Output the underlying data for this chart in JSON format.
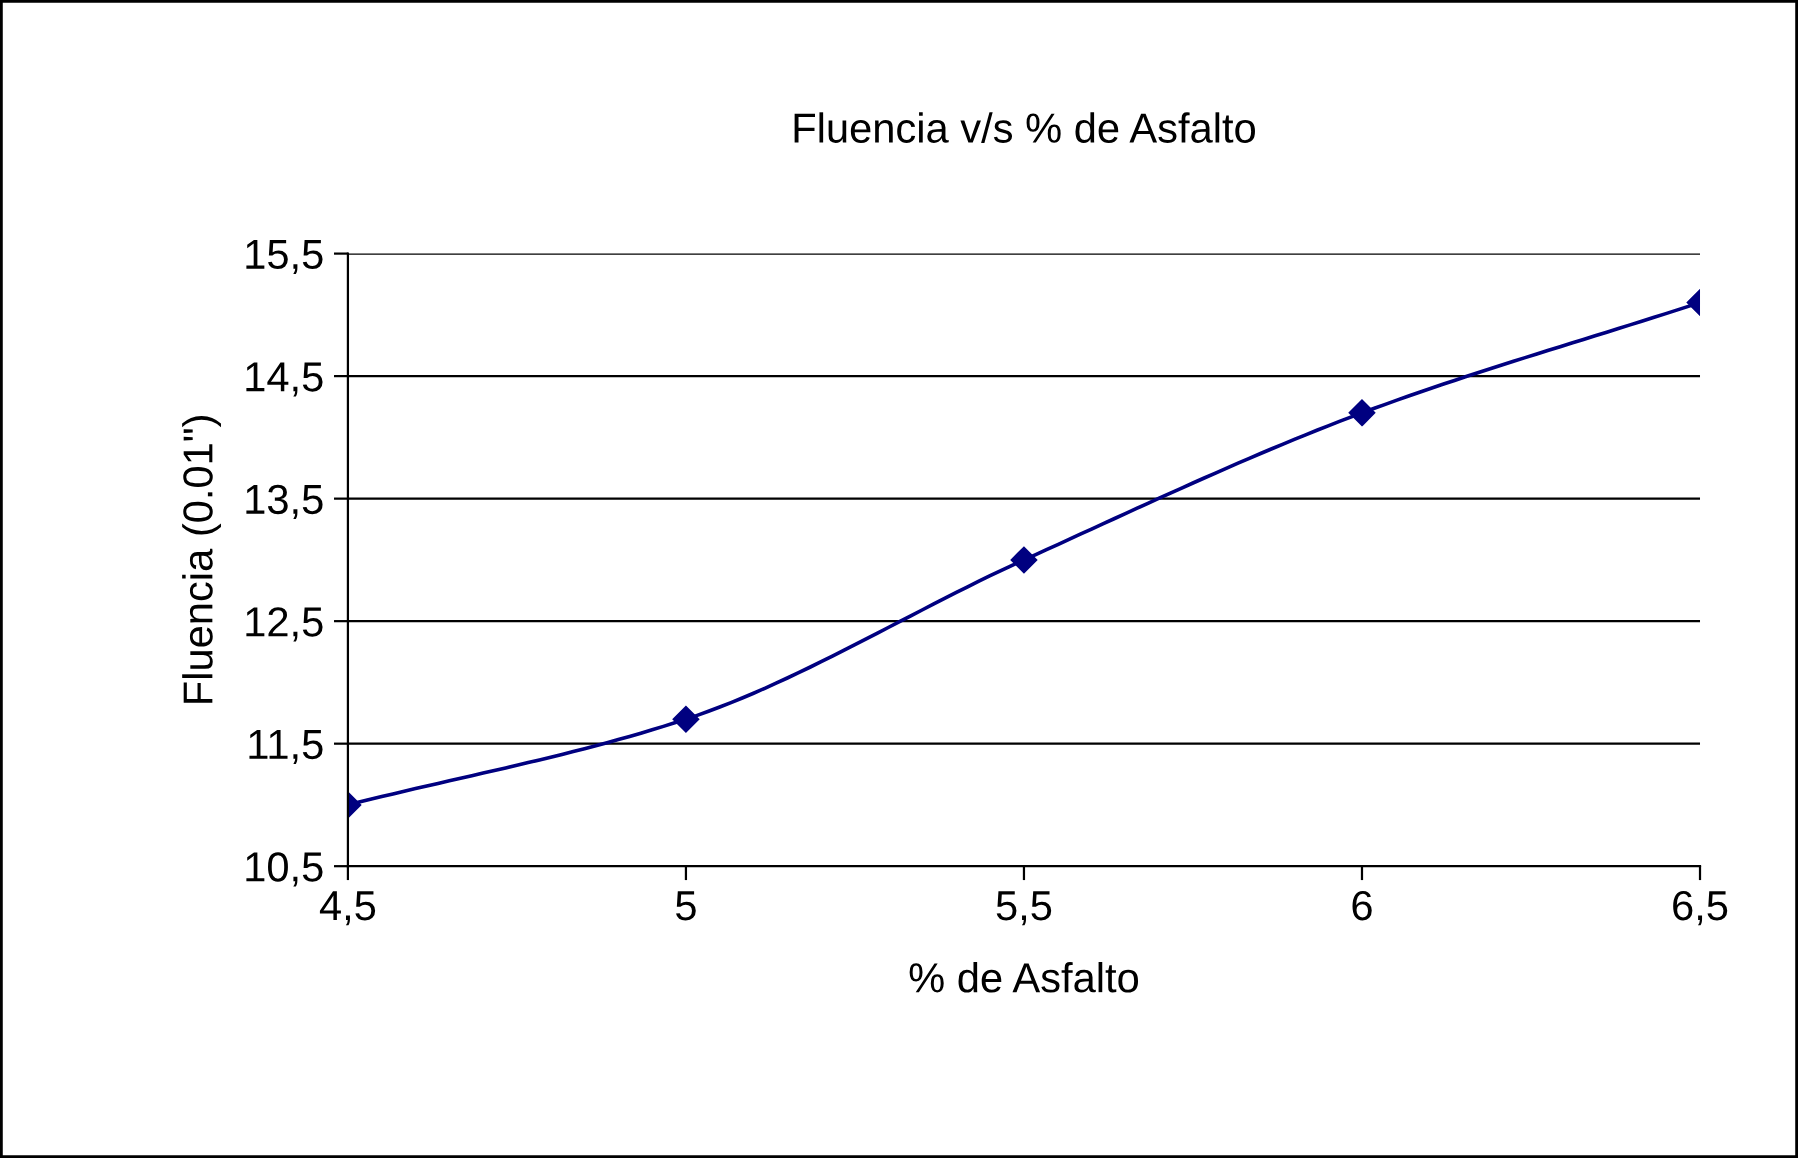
{
  "chart_data": {
    "type": "line",
    "title": "Fluencia v/s % de Asfalto",
    "xlabel": "% de Asfalto",
    "ylabel": "Fluencia (0.01\")",
    "x": [
      4.5,
      5,
      5.5,
      6,
      6.5
    ],
    "series": [
      {
        "color": "#000080",
        "values": [
          11.0,
          11.7,
          13.0,
          14.2,
          15.1
        ]
      }
    ],
    "xlim": [
      4.5,
      6.5
    ],
    "xticks": [
      {
        "value": 4.5,
        "label": "4,5"
      },
      5,
      {
        "value": 5.5,
        "label": "5,5"
      },
      6,
      {
        "value": 6.5,
        "label": "6,5"
      }
    ],
    "ylim": [
      10.5,
      15.5
    ],
    "yticks": [
      {
        "value": 10.5,
        "label": "10,5"
      },
      {
        "value": 11.5,
        "label": "11,5"
      },
      {
        "value": 12.5,
        "label": "12,5"
      },
      {
        "value": 13.5,
        "label": "13,5"
      },
      {
        "value": 14.5,
        "label": "14,5"
      },
      {
        "value": 15.5,
        "label": "15,5"
      }
    ],
    "grid": "y",
    "marker": "diamond",
    "line_style": "solid"
  }
}
